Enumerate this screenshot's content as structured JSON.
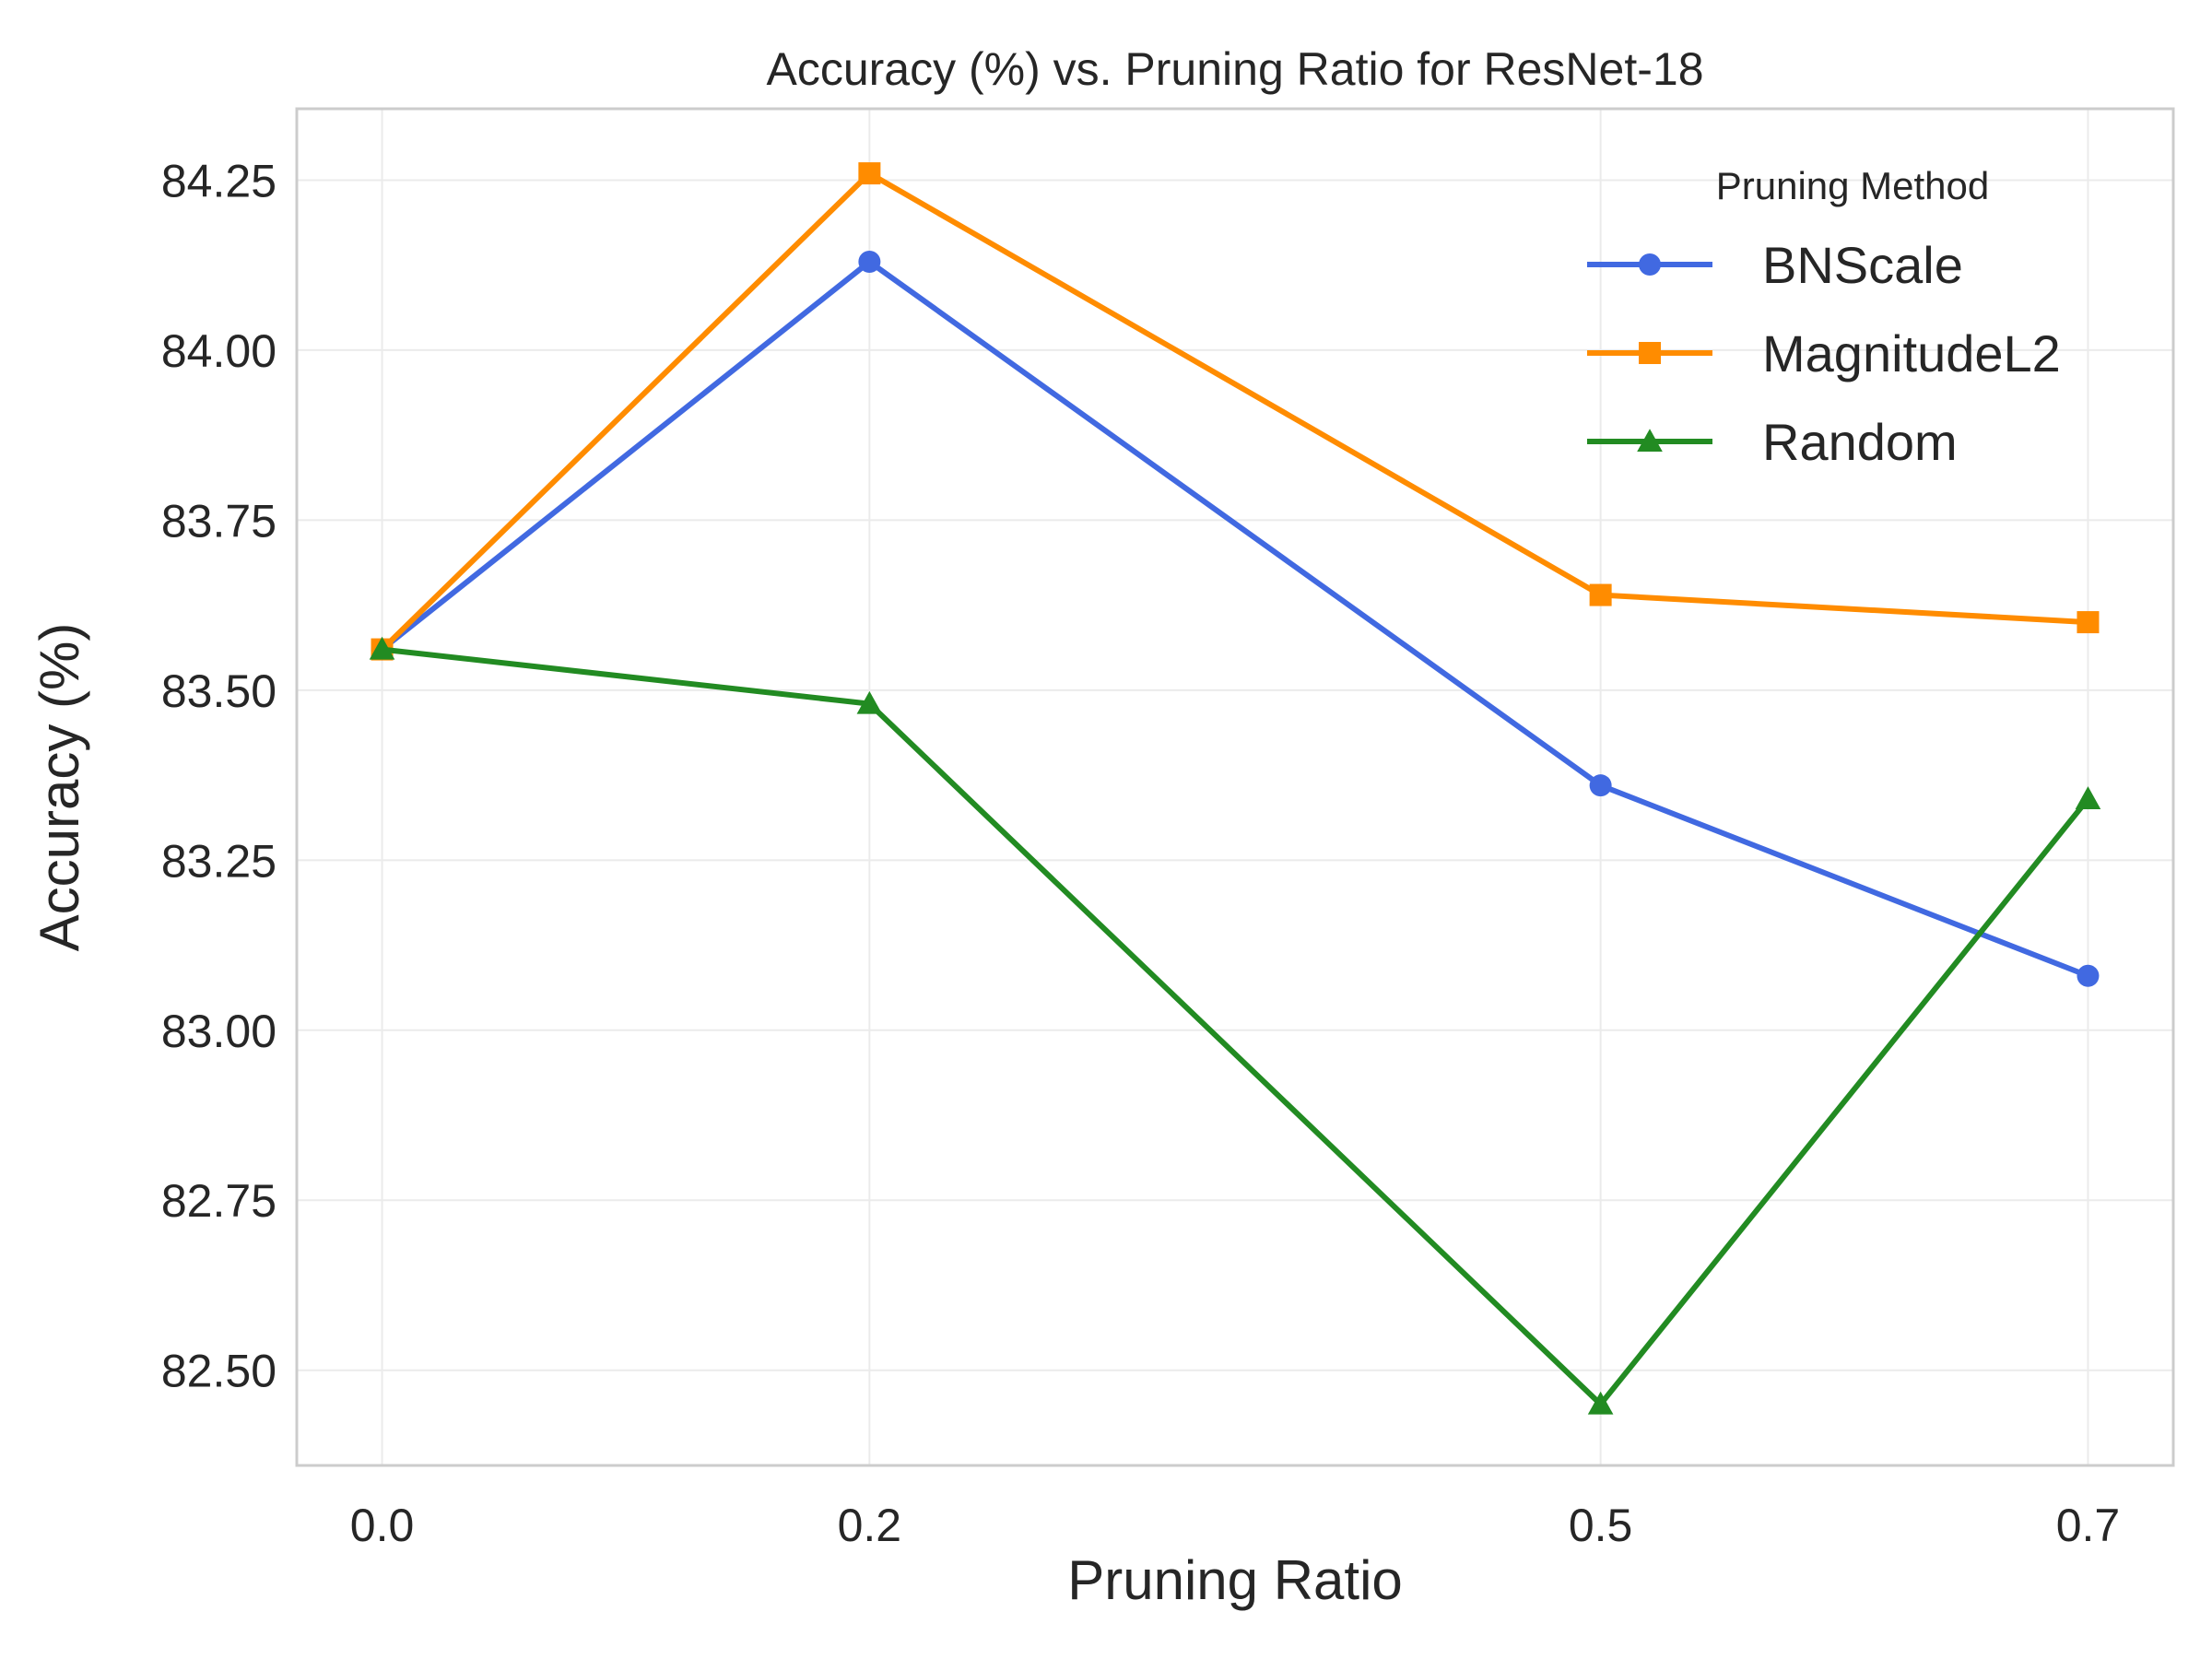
{
  "chart_data": {
    "type": "line",
    "title": "Accuracy (%) vs. Pruning Ratio for ResNet-18",
    "xlabel": "Pruning Ratio",
    "ylabel": "Accuracy (%)",
    "x": [
      0.0,
      0.2,
      0.5,
      0.7
    ],
    "x_tick_labels": [
      "0.0",
      "0.2",
      "0.5",
      "0.7"
    ],
    "xlim": [
      -0.035,
      0.735
    ],
    "ylim": [
      82.36,
      84.355
    ],
    "y_ticks": [
      82.5,
      82.75,
      83.0,
      83.25,
      83.5,
      83.75,
      84.0,
      84.25
    ],
    "y_tick_labels": [
      "82.50",
      "82.75",
      "83.00",
      "83.25",
      "83.50",
      "83.75",
      "84.00",
      "84.25"
    ],
    "grid": true,
    "legend": {
      "title": "Pruning Method",
      "placement": "top-right"
    },
    "series": [
      {
        "name": "BNScale",
        "color": "#4169e1",
        "marker": "circle",
        "values": [
          83.56,
          84.13,
          83.36,
          83.08
        ]
      },
      {
        "name": "MagnitudeL2",
        "color": "#ff8c00",
        "marker": "square",
        "values": [
          83.56,
          84.26,
          83.64,
          83.6
        ]
      },
      {
        "name": "Random",
        "color": "#228b22",
        "marker": "triangle",
        "values": [
          83.56,
          83.48,
          82.45,
          83.34
        ]
      }
    ]
  }
}
